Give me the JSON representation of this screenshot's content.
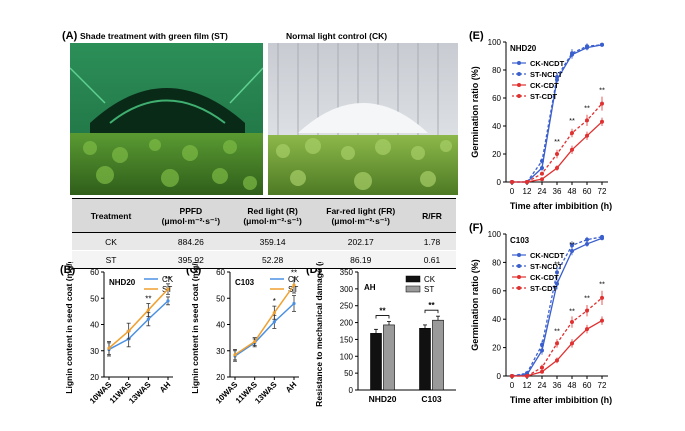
{
  "figure": {
    "labels": {
      "A": "(A)",
      "B": "(B)",
      "C": "(C)",
      "D": "(D)",
      "E": "(E)",
      "F": "(F)"
    },
    "photo_captions": [
      "Shade treatment with green film (ST)",
      "Normal light control (CK)"
    ]
  },
  "light_table": {
    "headers": [
      [
        "Treatment",
        ""
      ],
      [
        "PPFD",
        "(μmol·m⁻²·s⁻¹)"
      ],
      [
        "Red light  (R)",
        "(μmol·m⁻²·s⁻¹)"
      ],
      [
        "Far-red light (FR)",
        "(μmol·m⁻²·s⁻¹)"
      ],
      [
        "R/FR",
        ""
      ]
    ],
    "rows": [
      [
        "CK",
        "884.26",
        "359.14",
        "202.17",
        "1.78"
      ],
      [
        "ST",
        "395.92",
        "52.28",
        "86.19",
        "0.61"
      ]
    ]
  },
  "chart_data": [
    {
      "id": "B",
      "type": "line",
      "inset_label": "NHD20",
      "ylabel": "Lignin content in seed coat (mg/g)",
      "categories": [
        "10WAS",
        "11WAS",
        "13WAS",
        "AH"
      ],
      "ylim": [
        20,
        60
      ],
      "yticks": [
        20,
        30,
        40,
        50,
        60
      ],
      "series": [
        {
          "name": "CK",
          "color": "#4a90e2",
          "values": [
            30.5,
            34.5,
            42.0,
            49.0
          ],
          "err": [
            2.5,
            3.0,
            2.5,
            1.5
          ]
        },
        {
          "name": "ST",
          "color": "#f0a030",
          "values": [
            31.0,
            37.5,
            45.5,
            53.5
          ],
          "err": [
            2.5,
            3.0,
            2.5,
            2.0
          ]
        }
      ],
      "annotations": [
        {
          "index": 2,
          "text": "**"
        },
        {
          "index": 3,
          "text": "**"
        }
      ],
      "legend_position": "top-right"
    },
    {
      "id": "C",
      "type": "line",
      "inset_label": "C103",
      "ylabel": "Lignin content in seed coat (mg/g)",
      "categories": [
        "10WAS",
        "11WAS",
        "13WAS",
        "AH"
      ],
      "ylim": [
        20,
        60
      ],
      "yticks": [
        20,
        30,
        40,
        50,
        60
      ],
      "series": [
        {
          "name": "CK",
          "color": "#4a90e2",
          "values": [
            28.0,
            33.0,
            41.0,
            48.0
          ],
          "err": [
            2.0,
            1.5,
            2.5,
            3.0
          ]
        },
        {
          "name": "ST",
          "color": "#f0a030",
          "values": [
            28.5,
            33.5,
            44.5,
            55.0
          ],
          "err": [
            2.0,
            1.5,
            2.5,
            3.0
          ]
        }
      ],
      "annotations": [
        {
          "index": 2,
          "text": "*"
        },
        {
          "index": 3,
          "text": "**"
        }
      ],
      "legend_position": "top-right"
    },
    {
      "id": "D",
      "type": "bar",
      "inset_label": "AH",
      "ylabel": "Resistance to mechanical damage (g)",
      "categories": [
        "NHD20",
        "C103"
      ],
      "ylim": [
        0,
        350
      ],
      "yticks": [
        0,
        50,
        100,
        150,
        200,
        250,
        300,
        350
      ],
      "series": [
        {
          "name": "CK",
          "color": "#111111",
          "values": [
            168,
            183
          ],
          "err": [
            12,
            10
          ]
        },
        {
          "name": "ST",
          "color": "#9a9a9a",
          "values": [
            193,
            207
          ],
          "err": [
            10,
            12
          ]
        }
      ],
      "annotations": [
        {
          "index": 0,
          "text": "**"
        },
        {
          "index": 1,
          "text": "**"
        }
      ],
      "legend_position": "top-right"
    },
    {
      "id": "E",
      "type": "line",
      "inset_label": "NHD20",
      "xlabel": "Time after imbibition (h)",
      "ylabel": "Germination ratio (%)",
      "x": [
        0,
        12,
        24,
        36,
        48,
        60,
        72
      ],
      "xticks": [
        0,
        12,
        24,
        36,
        48,
        60,
        72
      ],
      "ylim": [
        0,
        100
      ],
      "yticks": [
        0,
        20,
        40,
        60,
        80,
        100
      ],
      "series": [
        {
          "name": "CK-NCDT",
          "color": "#3a5fcd",
          "dash": false,
          "values": [
            0,
            0,
            10,
            73,
            91,
            96,
            98
          ],
          "err": [
            0,
            0,
            2,
            3,
            3,
            2,
            1
          ]
        },
        {
          "name": "ST-NCDT",
          "color": "#3a5fcd",
          "dash": true,
          "values": [
            0,
            0,
            15,
            75,
            92,
            97,
            98
          ],
          "err": [
            0,
            0,
            2,
            3,
            3,
            2,
            1
          ]
        },
        {
          "name": "CK-CDT",
          "color": "#e03030",
          "dash": false,
          "values": [
            0,
            0,
            2,
            10,
            23,
            33,
            43
          ],
          "err": [
            0,
            0,
            1,
            2,
            3,
            3,
            3
          ]
        },
        {
          "name": "ST-CDT",
          "color": "#e03030",
          "dash": true,
          "values": [
            0,
            0,
            6,
            20,
            35,
            44,
            56
          ],
          "err": [
            0,
            0,
            1,
            3,
            3,
            4,
            5
          ]
        }
      ],
      "annotations": [
        {
          "x": 36,
          "y": 27,
          "text": "**"
        },
        {
          "x": 48,
          "y": 42,
          "text": "**"
        },
        {
          "x": 60,
          "y": 51,
          "text": "**"
        },
        {
          "x": 72,
          "y": 64,
          "text": "**"
        }
      ],
      "legend_position": "top-left"
    },
    {
      "id": "F",
      "type": "line",
      "inset_label": "C103",
      "xlabel": "Time after imbibition (h)",
      "ylabel": "Germination ratio (%)",
      "x": [
        0,
        12,
        24,
        36,
        48,
        60,
        72
      ],
      "xticks": [
        0,
        12,
        24,
        36,
        48,
        60,
        72
      ],
      "ylim": [
        0,
        100
      ],
      "yticks": [
        0,
        20,
        40,
        60,
        80,
        100
      ],
      "series": [
        {
          "name": "CK-NCDT",
          "color": "#3a5fcd",
          "dash": false,
          "values": [
            0,
            1,
            18,
            65,
            88,
            93,
            97
          ],
          "err": [
            0,
            1,
            3,
            4,
            3,
            2,
            1
          ]
        },
        {
          "name": "ST-NCDT",
          "color": "#3a5fcd",
          "dash": true,
          "values": [
            0,
            2,
            22,
            73,
            92,
            96,
            98
          ],
          "err": [
            0,
            1,
            3,
            4,
            3,
            2,
            1
          ]
        },
        {
          "name": "CK-CDT",
          "color": "#e03030",
          "dash": false,
          "values": [
            0,
            0,
            3,
            11,
            23,
            33,
            39
          ],
          "err": [
            0,
            0,
            1,
            2,
            3,
            3,
            3
          ]
        },
        {
          "name": "ST-CDT",
          "color": "#e03030",
          "dash": true,
          "values": [
            0,
            0,
            6,
            23,
            38,
            46,
            55
          ],
          "err": [
            0,
            0,
            2,
            3,
            4,
            4,
            5
          ]
        }
      ],
      "annotations": [
        {
          "x": 36,
          "y": 77,
          "text": "**"
        },
        {
          "x": 48,
          "y": 91,
          "text": "**"
        },
        {
          "x": 36,
          "y": 30,
          "text": "**"
        },
        {
          "x": 48,
          "y": 44,
          "text": "**"
        },
        {
          "x": 60,
          "y": 53,
          "text": "**"
        },
        {
          "x": 72,
          "y": 63,
          "text": "**"
        }
      ],
      "legend_position": "top-left"
    }
  ]
}
